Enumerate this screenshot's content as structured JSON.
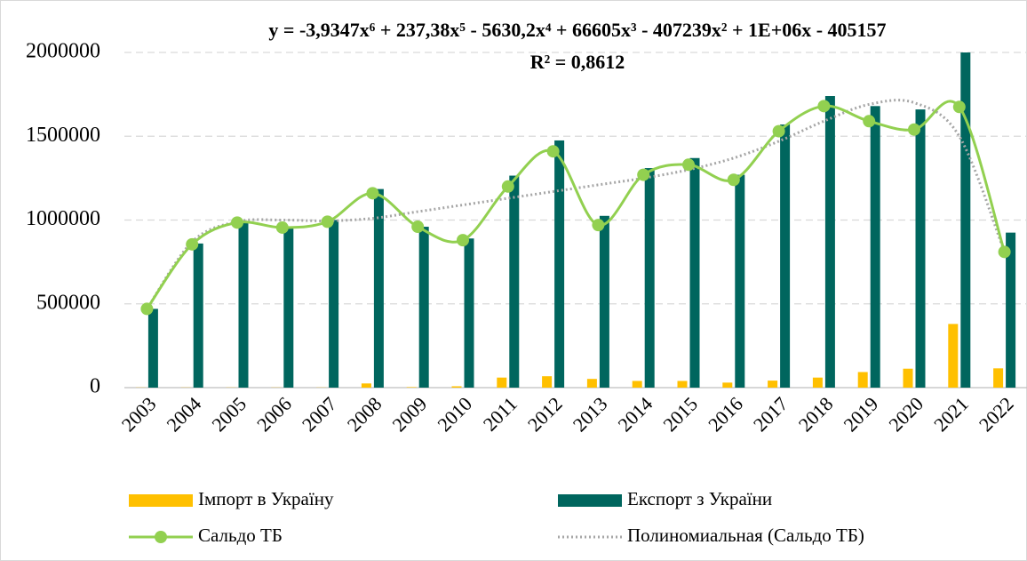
{
  "chart_data": {
    "type": "bar",
    "title": "y = -3,9347x⁶ + 237,38x⁵ - 5630,2x⁴ + 66605x³ - 407239x² + 1E+06x - 405157",
    "subtitle": "R² = 0,8612",
    "categories": [
      "2003",
      "2004",
      "2005",
      "2006",
      "2007",
      "2008",
      "2009",
      "2010",
      "2011",
      "2012",
      "2013",
      "2014",
      "2015",
      "2016",
      "2017",
      "2018",
      "2019",
      "2020",
      "2021",
      "2022"
    ],
    "series": [
      {
        "name": "Імпорт в Україну",
        "color": "#ffc000",
        "values": [
          1000,
          1000,
          1000,
          1000,
          1000,
          25000,
          3000,
          8000,
          60000,
          68000,
          52000,
          40000,
          40000,
          30000,
          42000,
          60000,
          93000,
          113000,
          380000,
          115000
        ]
      },
      {
        "name": "Експорт з України",
        "color": "#00665e",
        "values": [
          470000,
          860000,
          990000,
          960000,
          1000000,
          1185000,
          960000,
          890000,
          1265000,
          1475000,
          1025000,
          1310000,
          1370000,
          1270000,
          1570000,
          1740000,
          1680000,
          1660000,
          2000000,
          925000
        ]
      },
      {
        "name": "Сальдо ТБ",
        "color": "#92d050",
        "type": "line",
        "values": [
          470000,
          855000,
          985000,
          955000,
          990000,
          1160000,
          960000,
          880000,
          1200000,
          1410000,
          970000,
          1270000,
          1330000,
          1240000,
          1530000,
          1680000,
          1590000,
          1540000,
          1675000,
          810000
        ]
      },
      {
        "name": "Полиномиальная (Сальдо ТБ)",
        "color": "#a6a6a6",
        "type": "trendline",
        "values": [
          470000,
          870000,
          990000,
          1000000,
          995000,
          1010000,
          1050000,
          1090000,
          1130000,
          1170000,
          1210000,
          1250000,
          1300000,
          1370000,
          1470000,
          1590000,
          1690000,
          1700000,
          1500000,
          810000
        ]
      }
    ],
    "ylim": [
      0,
      2000000
    ],
    "yticks": [
      0,
      500000,
      1000000,
      1500000,
      2000000
    ],
    "grid": true
  }
}
